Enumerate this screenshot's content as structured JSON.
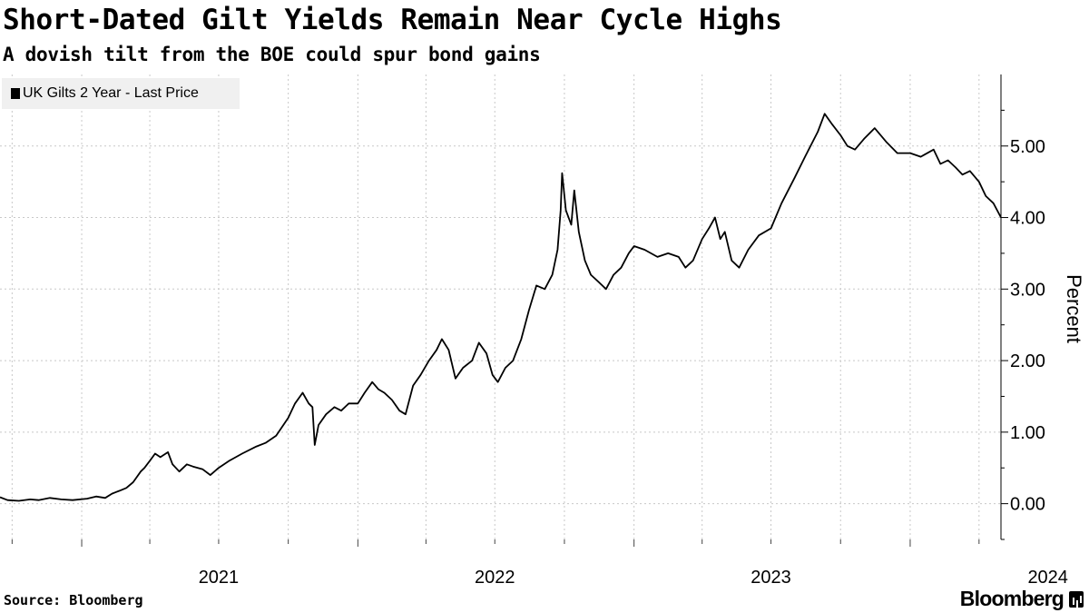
{
  "chart_data": {
    "type": "line",
    "title": "Short-Dated Gilt Yields Remain Near Cycle Highs",
    "subtitle": "A dovish tilt from the BOE could spur bond gains",
    "ylabel": "Percent",
    "ylim": [
      -0.5,
      6.0
    ],
    "yticks": [
      0,
      1,
      2,
      3,
      4,
      5
    ],
    "ytick_labels": [
      "0.00",
      "1.00",
      "2.00",
      "3.00",
      "4.00",
      "5.00"
    ],
    "xlim": [
      "2020-09-15",
      "2024-04-30"
    ],
    "xtick_labels": [
      {
        "date": "2021-01-01",
        "label": "2021"
      },
      {
        "date": "2022-01-01",
        "label": "2022"
      },
      {
        "date": "2023-01-01",
        "label": "2023"
      },
      {
        "date": "2024-01-01",
        "label": "2024"
      }
    ],
    "grid": true,
    "legend_position": "top-left",
    "series": [
      {
        "name": "UK Gilts 2 Year - Last Price",
        "color": "#000000",
        "points": [
          [
            "2020-09-15",
            0.09
          ],
          [
            "2020-09-25",
            0.05
          ],
          [
            "2020-10-10",
            0.04
          ],
          [
            "2020-10-25",
            0.06
          ],
          [
            "2020-11-05",
            0.05
          ],
          [
            "2020-11-20",
            0.08
          ],
          [
            "2020-12-05",
            0.06
          ],
          [
            "2020-12-20",
            0.05
          ],
          [
            "2021-01-08",
            0.07
          ],
          [
            "2021-01-20",
            0.1
          ],
          [
            "2021-02-01",
            0.08
          ],
          [
            "2021-02-10",
            0.14
          ],
          [
            "2021-02-20",
            0.18
          ],
          [
            "2021-03-01",
            0.22
          ],
          [
            "2021-03-10",
            0.3
          ],
          [
            "2021-03-20",
            0.45
          ],
          [
            "2021-03-25",
            0.5
          ],
          [
            "2021-04-01",
            0.6
          ],
          [
            "2021-04-08",
            0.7
          ],
          [
            "2021-04-15",
            0.65
          ],
          [
            "2021-04-25",
            0.72
          ],
          [
            "2021-05-01",
            0.55
          ],
          [
            "2021-05-10",
            0.45
          ],
          [
            "2021-05-20",
            0.55
          ],
          [
            "2021-05-28",
            0.52
          ],
          [
            "2021-06-10",
            0.48
          ],
          [
            "2021-06-20",
            0.4
          ],
          [
            "2021-07-01",
            0.5
          ],
          [
            "2021-07-15",
            0.6
          ],
          [
            "2021-08-01",
            0.7
          ],
          [
            "2021-08-20",
            0.8
          ],
          [
            "2021-09-01",
            0.85
          ],
          [
            "2021-09-15",
            0.95
          ],
          [
            "2021-10-01",
            1.2
          ],
          [
            "2021-10-10",
            1.4
          ],
          [
            "2021-10-20",
            1.55
          ],
          [
            "2021-10-28",
            1.4
          ],
          [
            "2021-11-02",
            1.35
          ],
          [
            "2021-11-05",
            0.82
          ],
          [
            "2021-11-10",
            1.1
          ],
          [
            "2021-11-20",
            1.25
          ],
          [
            "2021-12-01",
            1.35
          ],
          [
            "2021-12-10",
            1.3
          ],
          [
            "2021-12-20",
            1.4
          ],
          [
            "2022-01-01",
            1.4
          ],
          [
            "2022-01-10",
            1.55
          ],
          [
            "2022-01-20",
            1.7
          ],
          [
            "2022-01-28",
            1.6
          ],
          [
            "2022-02-05",
            1.55
          ],
          [
            "2022-02-15",
            1.45
          ],
          [
            "2022-02-25",
            1.3
          ],
          [
            "2022-03-05",
            1.25
          ],
          [
            "2022-03-15",
            1.65
          ],
          [
            "2022-03-25",
            1.8
          ],
          [
            "2022-04-05",
            2.0
          ],
          [
            "2022-04-15",
            2.15
          ],
          [
            "2022-04-22",
            2.3
          ],
          [
            "2022-05-01",
            2.15
          ],
          [
            "2022-05-10",
            1.75
          ],
          [
            "2022-05-20",
            1.9
          ],
          [
            "2022-06-01",
            2.0
          ],
          [
            "2022-06-10",
            2.25
          ],
          [
            "2022-06-20",
            2.1
          ],
          [
            "2022-06-28",
            1.8
          ],
          [
            "2022-07-05",
            1.7
          ],
          [
            "2022-07-15",
            1.9
          ],
          [
            "2022-07-25",
            2.0
          ],
          [
            "2022-08-05",
            2.3
          ],
          [
            "2022-08-15",
            2.7
          ],
          [
            "2022-08-25",
            3.05
          ],
          [
            "2022-09-05",
            3.0
          ],
          [
            "2022-09-15",
            3.2
          ],
          [
            "2022-09-22",
            3.55
          ],
          [
            "2022-09-26",
            4.1
          ],
          [
            "2022-09-28",
            4.62
          ],
          [
            "2022-10-03",
            4.1
          ],
          [
            "2022-10-10",
            3.9
          ],
          [
            "2022-10-14",
            4.38
          ],
          [
            "2022-10-20",
            3.8
          ],
          [
            "2022-10-28",
            3.4
          ],
          [
            "2022-11-05",
            3.2
          ],
          [
            "2022-11-15",
            3.1
          ],
          [
            "2022-11-25",
            3.0
          ],
          [
            "2022-12-05",
            3.2
          ],
          [
            "2022-12-15",
            3.3
          ],
          [
            "2022-12-25",
            3.5
          ],
          [
            "2023-01-01",
            3.6
          ],
          [
            "2023-01-15",
            3.55
          ],
          [
            "2023-02-01",
            3.45
          ],
          [
            "2023-02-15",
            3.5
          ],
          [
            "2023-03-01",
            3.45
          ],
          [
            "2023-03-10",
            3.3
          ],
          [
            "2023-03-20",
            3.4
          ],
          [
            "2023-04-01",
            3.7
          ],
          [
            "2023-04-10",
            3.85
          ],
          [
            "2023-04-18",
            4.0
          ],
          [
            "2023-04-25",
            3.7
          ],
          [
            "2023-05-01",
            3.8
          ],
          [
            "2023-05-10",
            3.4
          ],
          [
            "2023-05-20",
            3.3
          ],
          [
            "2023-06-01",
            3.55
          ],
          [
            "2023-06-15",
            3.75
          ],
          [
            "2023-07-01",
            3.85
          ],
          [
            "2023-07-15",
            4.2
          ],
          [
            "2023-08-01",
            4.55
          ],
          [
            "2023-08-15",
            4.85
          ],
          [
            "2023-09-01",
            5.2
          ],
          [
            "2023-09-10",
            5.45
          ],
          [
            "2023-09-20",
            5.3
          ],
          [
            "2023-10-01",
            5.15
          ],
          [
            "2023-10-10",
            5.0
          ],
          [
            "2023-10-20",
            4.95
          ],
          [
            "2023-11-01",
            5.1
          ],
          [
            "2023-11-15",
            5.25
          ],
          [
            "2023-12-01",
            5.05
          ],
          [
            "2023-12-15",
            4.9
          ],
          [
            "2024-01-01",
            4.9
          ],
          [
            "2024-01-15",
            4.85
          ],
          [
            "2024-02-01",
            4.95
          ],
          [
            "2024-02-10",
            4.75
          ],
          [
            "2024-02-20",
            4.8
          ],
          [
            "2024-03-01",
            4.7
          ],
          [
            "2024-03-10",
            4.6
          ],
          [
            "2024-03-20",
            4.65
          ],
          [
            "2024-04-01",
            4.5
          ],
          [
            "2024-04-10",
            4.3
          ],
          [
            "2024-04-20",
            4.2
          ],
          [
            "2024-04-30",
            4.0
          ]
        ]
      }
    ]
  },
  "source": "Source: Bloomberg",
  "brand": "Bloomberg",
  "brand_icon": "bloomberg-terminal-icon"
}
